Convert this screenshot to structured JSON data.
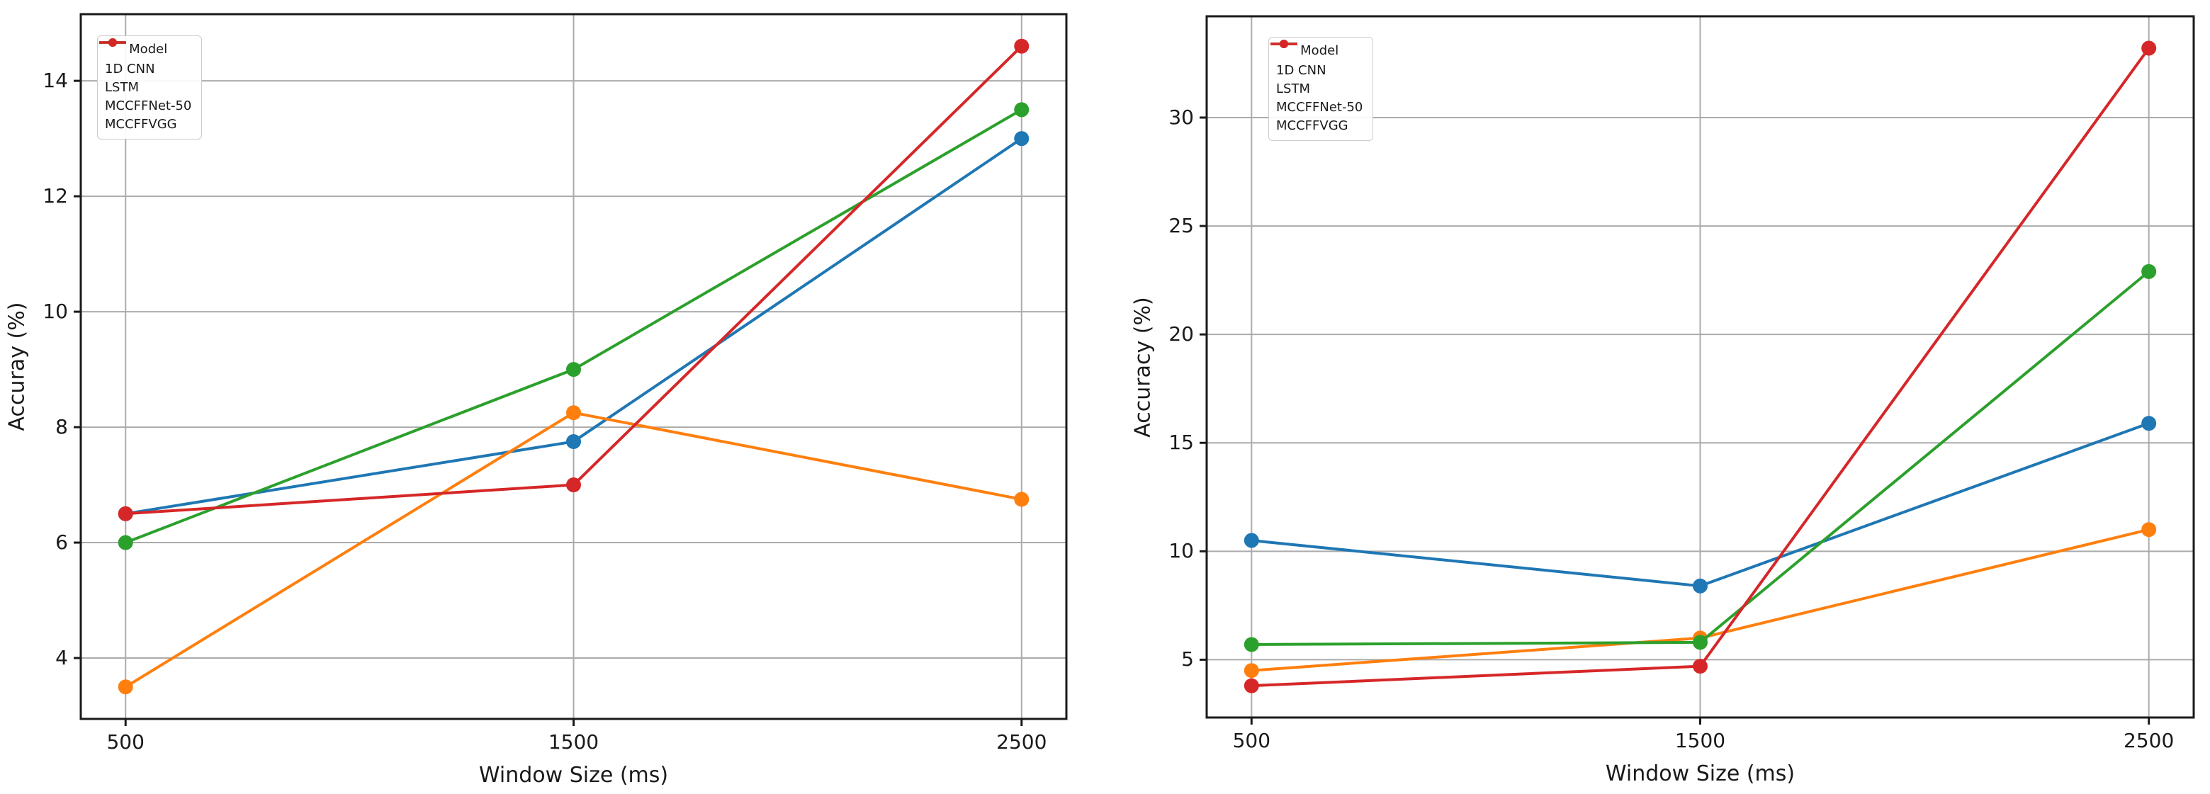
{
  "figure": {
    "background": "#ffffff",
    "text_color": "#1a1a1a",
    "grid_color": "#ababab",
    "spine_color": "#1a1a1a"
  },
  "chart_data": [
    {
      "type": "line",
      "title": "",
      "xlabel": "Window Size (ms)",
      "ylabel": "Accuray (%)",
      "x": [
        500,
        1500,
        2500
      ],
      "xticks": [
        500,
        1500,
        2500
      ],
      "yticks": [
        4,
        6,
        8,
        10,
        12,
        14
      ],
      "xlim": [
        400,
        2600
      ],
      "ylim": [
        2.945,
        15.155
      ],
      "grid": true,
      "legend_title": "Model",
      "legend_position": "upper-left",
      "series": [
        {
          "name": "1D CNN",
          "color": "#1f77b4",
          "values": [
            6.5,
            7.75,
            13.0
          ]
        },
        {
          "name": "LSTM",
          "color": "#ff7f0e",
          "values": [
            3.5,
            8.25,
            6.75
          ]
        },
        {
          "name": "MCCFFNet-50",
          "color": "#2ca02c",
          "values": [
            6.0,
            9.0,
            13.5
          ]
        },
        {
          "name": "MCCFFVGG",
          "color": "#d62728",
          "values": [
            6.5,
            7.0,
            14.6
          ]
        }
      ]
    },
    {
      "type": "line",
      "title": "",
      "xlabel": "Window Size (ms)",
      "ylabel": "Accuracy (%)",
      "x": [
        500,
        1500,
        2500
      ],
      "xticks": [
        500,
        1500,
        2500
      ],
      "yticks": [
        5,
        10,
        15,
        20,
        25,
        30
      ],
      "xlim": [
        400,
        2600
      ],
      "ylim": [
        2.335,
        34.67
      ],
      "grid": true,
      "legend_title": "Model",
      "legend_position": "upper-left",
      "series": [
        {
          "name": "1D CNN",
          "color": "#1f77b4",
          "values": [
            10.5,
            8.4,
            15.9
          ]
        },
        {
          "name": "LSTM",
          "color": "#ff7f0e",
          "values": [
            4.5,
            6.0,
            11.0
          ]
        },
        {
          "name": "MCCFFNet-50",
          "color": "#2ca02c",
          "values": [
            5.7,
            5.8,
            22.9
          ]
        },
        {
          "name": "MCCFFVGG",
          "color": "#d62728",
          "values": [
            3.8,
            4.7,
            33.2
          ]
        }
      ]
    }
  ]
}
